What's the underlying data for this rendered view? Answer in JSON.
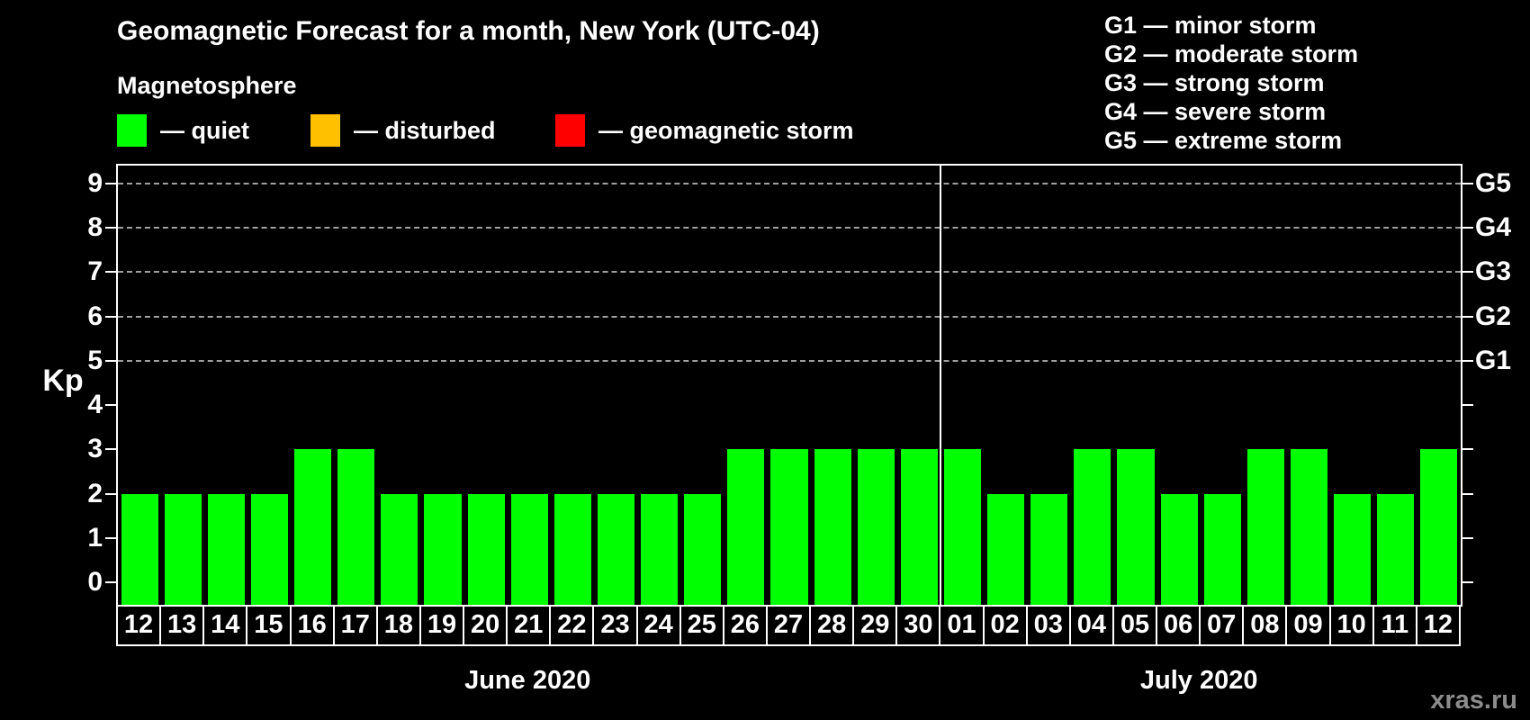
{
  "page": {
    "watermark": "xras.ru",
    "watermark_color": "#8c8c8c",
    "background": "#000000"
  },
  "chart_data": {
    "type": "bar",
    "title": "Geomagnetic Forecast for a month, New York (UTC-04)",
    "legend_title": "Magnetosphere",
    "legend": [
      {
        "name": "quiet",
        "label": "— quiet",
        "color": "#00ff00"
      },
      {
        "name": "disturbed",
        "label": "— disturbed",
        "color": "#ffc000"
      },
      {
        "name": "storm",
        "label": "— geomagnetic storm",
        "color": "#ff0000"
      }
    ],
    "storm_scale": [
      "G1 — minor storm",
      "G2 — moderate storm",
      "G3 — strong storm",
      "G4 — severe storm",
      "G5 — extreme storm"
    ],
    "ylabel": "Kp",
    "yticks": [
      0,
      1,
      2,
      3,
      4,
      5,
      6,
      7,
      8,
      9
    ],
    "ylim": [
      -0.5,
      9.4
    ],
    "grid_levels": [
      5,
      6,
      7,
      8,
      9
    ],
    "right_axis": [
      {
        "level": 5,
        "label": "G1"
      },
      {
        "level": 6,
        "label": "G2"
      },
      {
        "level": 7,
        "label": "G3"
      },
      {
        "level": 8,
        "label": "G4"
      },
      {
        "level": 9,
        "label": "G5"
      }
    ],
    "months": [
      {
        "label": "June 2020",
        "days": [
          "12",
          "13",
          "14",
          "15",
          "16",
          "17",
          "18",
          "19",
          "20",
          "21",
          "22",
          "23",
          "24",
          "25",
          "26",
          "27",
          "28",
          "29",
          "30"
        ],
        "values": [
          2,
          2,
          2,
          2,
          3,
          3,
          2,
          2,
          2,
          2,
          2,
          2,
          2,
          2,
          3,
          3,
          3,
          3,
          3
        ]
      },
      {
        "label": "July 2020",
        "days": [
          "01",
          "02",
          "03",
          "04",
          "05",
          "06",
          "07",
          "08",
          "09",
          "10",
          "11",
          "12"
        ],
        "values": [
          3,
          2,
          2,
          3,
          3,
          2,
          2,
          3,
          3,
          2,
          2,
          3
        ]
      }
    ],
    "bar_color_quiet": "#00ff00",
    "bar_color_disturbed": "#ffc000",
    "bar_color_storm": "#ff0000",
    "grid_color": "#a0a0a0",
    "axis_color": "#ffffff"
  }
}
